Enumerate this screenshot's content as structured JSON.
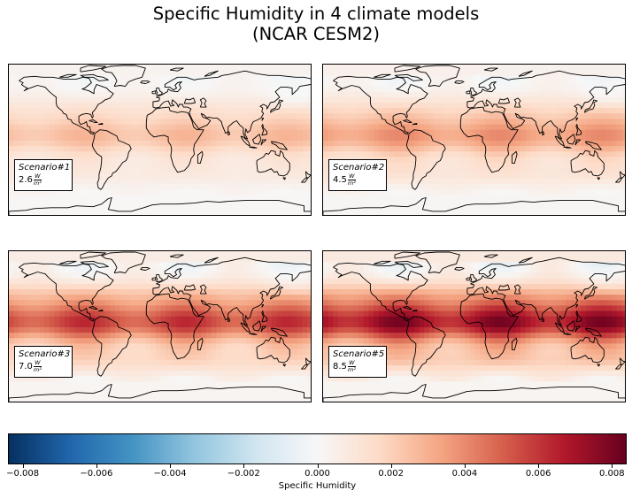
{
  "figure": {
    "title_line1": "Specific Humidity in 4 climate models",
    "title_line2": "(NCAR CESM2)"
  },
  "chart_data": {
    "type": "heatmap",
    "title": "Specific Humidity in 4 climate models (NCAR CESM2)",
    "colormap": "RdBu_r",
    "grid": false,
    "panels": [
      {
        "scenario": "Scenario#1",
        "forcing": 2.6,
        "forcing_label": "2.6",
        "unit_num": "W",
        "unit_den": "m²",
        "tropical_anomaly": 0.0025
      },
      {
        "scenario": "Scenario#2",
        "forcing": 4.5,
        "forcing_label": "4.5",
        "unit_num": "W",
        "unit_den": "m²",
        "tropical_anomaly": 0.0035
      },
      {
        "scenario": "Scenario#3",
        "forcing": 7.0,
        "forcing_label": "7.0",
        "unit_num": "W",
        "unit_den": "m²",
        "tropical_anomaly": 0.0055
      },
      {
        "scenario": "Scenario#5",
        "forcing": 8.5,
        "forcing_label": "8.5",
        "unit_num": "W",
        "unit_den": "m²",
        "tropical_anomaly": 0.007
      }
    ],
    "colorbar": {
      "label": "Specific Humidity",
      "range": [
        -0.0084,
        0.0084
      ],
      "ticks": [
        -0.008,
        -0.006,
        -0.004,
        -0.002,
        0.0,
        0.002,
        0.004,
        0.006,
        0.008
      ],
      "tick_labels": [
        "−0.008",
        "−0.006",
        "−0.004",
        "−0.002",
        "0.000",
        "0.002",
        "0.004",
        "0.006",
        "0.008"
      ]
    }
  }
}
